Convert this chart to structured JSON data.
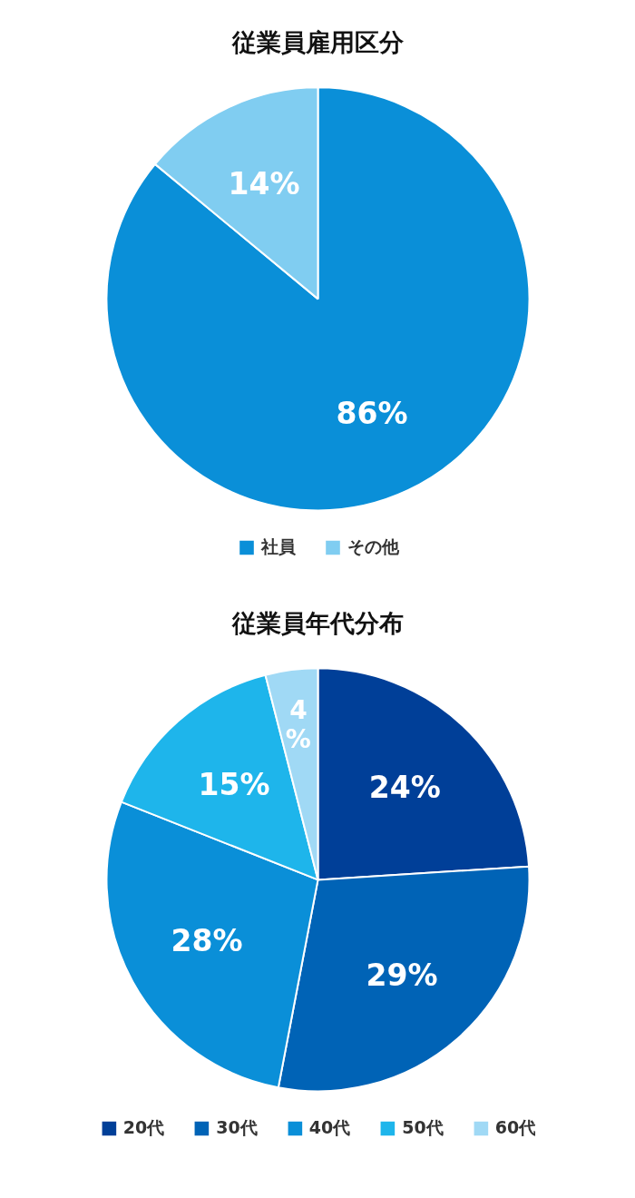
{
  "chart_data": [
    {
      "type": "pie",
      "title": "従業員雇用区分",
      "categories": [
        "社員",
        "その他"
      ],
      "values": [
        86,
        14
      ],
      "colors": [
        "#0a8fd8",
        "#80cdf1"
      ],
      "value_labels": [
        "86%",
        "14%"
      ],
      "legend": "bottom"
    },
    {
      "type": "pie",
      "title": "従業員年代分布",
      "categories": [
        "20代",
        "30代",
        "40代",
        "50代",
        "60代"
      ],
      "values": [
        24,
        29,
        28,
        15,
        4
      ],
      "colors": [
        "#003f98",
        "#0063b6",
        "#0a8fd8",
        "#1eb5eb",
        "#a0d9f5"
      ],
      "value_labels": [
        "24%",
        "29%",
        "28%",
        "15%",
        "4\n%"
      ],
      "legend": "bottom"
    }
  ]
}
